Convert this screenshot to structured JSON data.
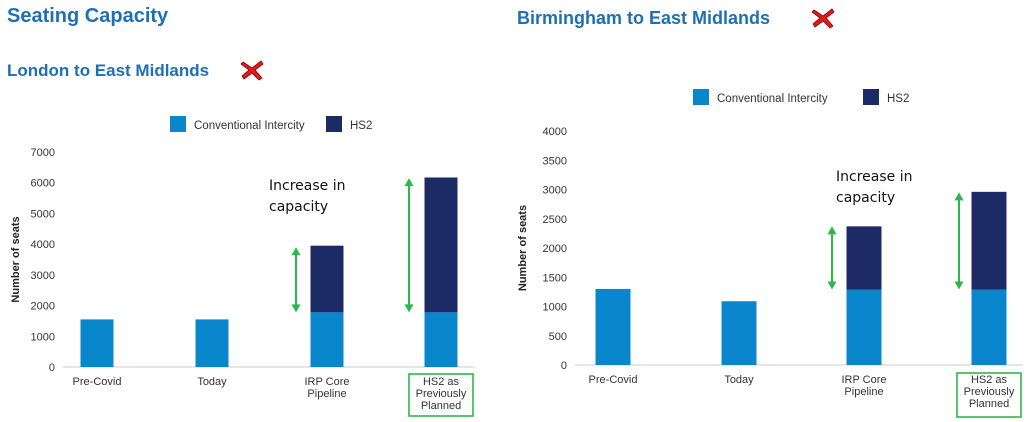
{
  "page": {
    "title": "Seating Capacity",
    "left_subtitle": "London to East Midlands",
    "right_subtitle": "Birmingham to East Midlands"
  },
  "icons": {
    "status_icon": "red-cross-icon"
  },
  "colors": {
    "title": "#1f6fb5",
    "conventional": "#0a87cc",
    "hs2": "#1c2a66",
    "arrow": "#2db84b",
    "highlight_box": "#2db84b",
    "cross": "#e01b1b"
  },
  "chart_data": [
    {
      "type": "bar",
      "stacked": true,
      "title": "London to East Midlands",
      "ylabel": "Number of seats",
      "ylim": [
        0,
        7000
      ],
      "yticks": [
        0,
        1000,
        2000,
        3000,
        4000,
        5000,
        6000,
        7000
      ],
      "categories": [
        "Pre-Covid",
        "Today",
        "IRP Core Pipeline",
        "HS2 as Previously Planned"
      ],
      "series": [
        {
          "name": "Conventional Intercity",
          "values": [
            1550,
            1550,
            1780,
            1780
          ]
        },
        {
          "name": "HS2",
          "values": [
            0,
            0,
            2170,
            4390
          ]
        }
      ],
      "legend": "top",
      "grid": false,
      "annotation": "Increase in capacity",
      "highlighted_category": "HS2 as Previously Planned"
    },
    {
      "type": "bar",
      "stacked": true,
      "title": "Birmingham to East Midlands",
      "ylabel": "Number of seats",
      "ylim": [
        0,
        4000
      ],
      "yticks": [
        0,
        500,
        1000,
        1500,
        2000,
        2500,
        3000,
        3500,
        4000
      ],
      "categories": [
        "Pre-Covid",
        "Today",
        "IRP Core Pipeline",
        "HS2 as Previously Planned"
      ],
      "series": [
        {
          "name": "Conventional Intercity",
          "values": [
            1300,
            1090,
            1290,
            1290
          ]
        },
        {
          "name": "HS2",
          "values": [
            0,
            0,
            1080,
            1670
          ]
        }
      ],
      "legend": "top",
      "grid": false,
      "annotation": "Increase in capacity",
      "highlighted_category": "HS2 as Previously Planned"
    }
  ]
}
